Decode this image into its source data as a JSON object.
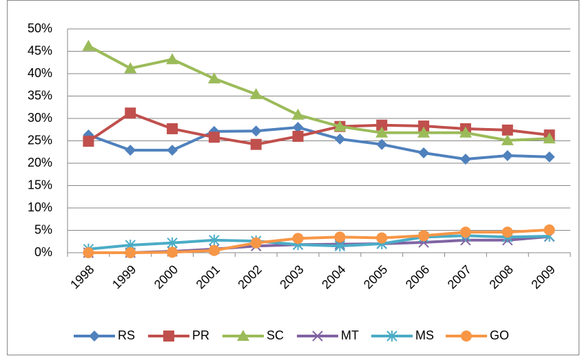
{
  "chart_data": {
    "type": "line",
    "categories": [
      "1998",
      "1999",
      "2000",
      "2001",
      "2002",
      "2003",
      "2004",
      "2005",
      "2006",
      "2007",
      "2008",
      "2009"
    ],
    "series": [
      {
        "name": "RS",
        "color": "#4f81bd",
        "marker": "diamond",
        "values": [
          26.3,
          22.9,
          22.9,
          27.1,
          27.2,
          28.0,
          25.4,
          24.2,
          22.3,
          20.9,
          21.7,
          21.4
        ]
      },
      {
        "name": "PR",
        "color": "#c0504d",
        "marker": "square",
        "values": [
          24.9,
          31.2,
          27.7,
          25.8,
          24.2,
          26.0,
          28.2,
          28.5,
          28.3,
          27.7,
          27.4,
          26.3
        ]
      },
      {
        "name": "SC",
        "color": "#9bbb59",
        "marker": "triangle",
        "values": [
          46.2,
          41.2,
          43.2,
          38.9,
          35.4,
          30.8,
          28.2,
          26.8,
          26.8,
          26.8,
          25.1,
          25.5
        ]
      },
      {
        "name": "MT",
        "color": "#8064a2",
        "marker": "x",
        "values": [
          0,
          0,
          0.3,
          0.8,
          1.5,
          1.8,
          1.9,
          2.0,
          2.3,
          2.8,
          2.8,
          3.6
        ]
      },
      {
        "name": "MS",
        "color": "#4bacc6",
        "marker": "star",
        "values": [
          0.8,
          1.7,
          2.2,
          2.8,
          2.6,
          1.8,
          1.5,
          2.0,
          3.5,
          3.8,
          3.5,
          3.7
        ]
      },
      {
        "name": "GO",
        "color": "#f79646",
        "marker": "circle",
        "values": [
          0,
          0,
          0.1,
          0.5,
          2.2,
          3.2,
          3.5,
          3.3,
          3.8,
          4.6,
          4.6,
          5.1
        ]
      }
    ],
    "ylim": [
      0,
      50
    ],
    "yticks": [
      {
        "value": 0,
        "label": "0%"
      },
      {
        "value": 5,
        "label": "5%"
      },
      {
        "value": 10,
        "label": "10%"
      },
      {
        "value": 15,
        "label": "15%"
      },
      {
        "value": 20,
        "label": "20%"
      },
      {
        "value": 25,
        "label": "25%"
      },
      {
        "value": 30,
        "label": "30%"
      },
      {
        "value": 35,
        "label": "35%"
      },
      {
        "value": 40,
        "label": "40%"
      },
      {
        "value": 45,
        "label": "45%"
      },
      {
        "value": 50,
        "label": "50%"
      }
    ],
    "grid": true,
    "legend": "bottom"
  }
}
